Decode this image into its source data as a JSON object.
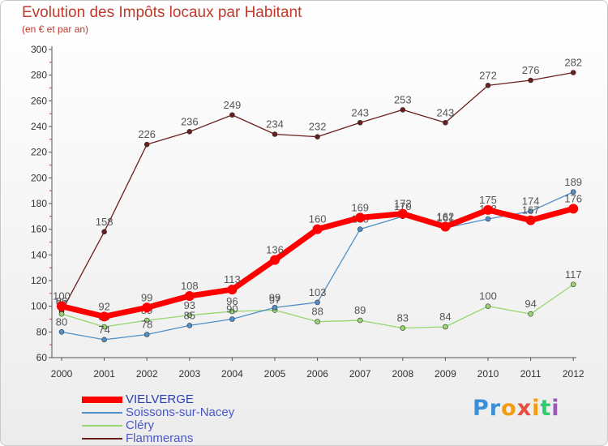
{
  "title": "Evolution des Impôts locaux par Habitant",
  "subtitle": "(en € et par an)",
  "logo": {
    "letters": [
      "P",
      "r",
      "o",
      "x",
      "i",
      "t",
      "i"
    ],
    "colors": [
      "#3b8fd8",
      "#3b8fd8",
      "#f39c12",
      "#e74c3c",
      "#f39c12",
      "#2ecc71",
      "#9b59b6"
    ]
  },
  "chart_data": {
    "type": "line",
    "title": "Evolution des Impôts locaux par Habitant",
    "subtitle": "(en € et par an)",
    "x": [
      "2000",
      "2001",
      "2002",
      "2003",
      "2004",
      "2005",
      "2006",
      "2007",
      "2008",
      "2009",
      "2010",
      "2011",
      "2012"
    ],
    "ylim": [
      60,
      300
    ],
    "yticks": [
      60,
      80,
      100,
      120,
      140,
      160,
      180,
      200,
      220,
      240,
      260,
      280,
      300
    ],
    "grid": false,
    "legend_position": "bottom-left",
    "series": [
      {
        "name": "VIELVERGE",
        "color": "#ff0000",
        "values": [
          100,
          92,
          99,
          108,
          113,
          136,
          160,
          169,
          172,
          162,
          175,
          167,
          176
        ]
      },
      {
        "name": "Soissons-sur-Nacey",
        "color": "#4f8fc9",
        "values": [
          80,
          74,
          78,
          85,
          90,
          99,
          103,
          160,
          170,
          161,
          168,
          174,
          189
        ]
      },
      {
        "name": "Cléry",
        "color": "#98d66e",
        "values": [
          94,
          84,
          89,
          93,
          96,
          97,
          88,
          89,
          83,
          84,
          100,
          94,
          117
        ]
      },
      {
        "name": "Flammerans",
        "color": "#6b1e1e",
        "values": [
          96,
          158,
          226,
          236,
          249,
          234,
          232,
          243,
          253,
          243,
          272,
          276,
          282
        ]
      }
    ]
  }
}
